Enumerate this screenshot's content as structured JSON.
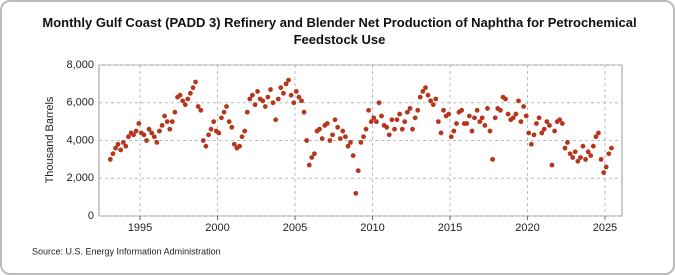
{
  "chart_data": {
    "type": "scatter",
    "title": "Monthly Gulf Coast (PADD 3) Refinery and Blender Net Production of Naphtha for Petrochemical Feedstock Use",
    "y_label": "Thousand Barrels",
    "source": "Source: U.S. Energy Information Administration",
    "color": "#b5361c",
    "xlim": [
      1992.35,
      2026.1
    ],
    "xticks": [
      1995,
      2000,
      2005,
      2010,
      2015,
      2020,
      2025
    ],
    "ylim": [
      0,
      8000
    ],
    "yticks": [
      0,
      {
        "value": 2000,
        "label": "2,000"
      },
      {
        "value": 4000,
        "label": "4,000"
      },
      {
        "value": 6000,
        "label": "6,000"
      },
      {
        "value": 8000,
        "label": "8,000"
      }
    ],
    "grid": true,
    "x": [
      1993.08,
      1993.25,
      1993.42,
      1993.58,
      1993.75,
      1993.92,
      1994.08,
      1994.25,
      1994.42,
      1994.58,
      1994.75,
      1994.92,
      1995.08,
      1995.25,
      1995.42,
      1995.58,
      1995.75,
      1995.92,
      1996.08,
      1996.25,
      1996.42,
      1996.58,
      1996.75,
      1996.92,
      1997.08,
      1997.25,
      1997.42,
      1997.58,
      1997.75,
      1997.92,
      1998.08,
      1998.25,
      1998.42,
      1998.58,
      1998.75,
      1998.92,
      1999.08,
      1999.25,
      1999.42,
      1999.58,
      1999.75,
      1999.92,
      2000.08,
      2000.25,
      2000.42,
      2000.58,
      2000.75,
      2000.92,
      2001.08,
      2001.25,
      2001.42,
      2001.58,
      2001.75,
      2001.92,
      2002.08,
      2002.25,
      2002.42,
      2002.58,
      2002.75,
      2002.92,
      2003.08,
      2003.25,
      2003.42,
      2003.58,
      2003.75,
      2003.92,
      2004.08,
      2004.25,
      2004.42,
      2004.58,
      2004.75,
      2004.92,
      2005.08,
      2005.25,
      2005.42,
      2005.58,
      2005.75,
      2005.92,
      2006.08,
      2006.25,
      2006.42,
      2006.58,
      2006.75,
      2006.92,
      2007.08,
      2007.25,
      2007.42,
      2007.58,
      2007.75,
      2007.92,
      2008.08,
      2008.25,
      2008.42,
      2008.58,
      2008.75,
      2008.92,
      2009.08,
      2009.25,
      2009.42,
      2009.58,
      2009.75,
      2009.92,
      2010.08,
      2010.25,
      2010.42,
      2010.58,
      2010.75,
      2010.92,
      2011.08,
      2011.25,
      2011.42,
      2011.58,
      2011.75,
      2011.92,
      2012.08,
      2012.25,
      2012.42,
      2012.58,
      2012.75,
      2012.92,
      2013.08,
      2013.25,
      2013.42,
      2013.58,
      2013.75,
      2013.92,
      2014.08,
      2014.25,
      2014.42,
      2014.58,
      2014.75,
      2014.92,
      2015.08,
      2015.25,
      2015.42,
      2015.58,
      2015.75,
      2015.92,
      2016.08,
      2016.25,
      2016.42,
      2016.58,
      2016.75,
      2016.92,
      2017.08,
      2017.25,
      2017.42,
      2017.58,
      2017.75,
      2017.92,
      2018.08,
      2018.25,
      2018.42,
      2018.58,
      2018.75,
      2018.92,
      2019.08,
      2019.25,
      2019.42,
      2019.58,
      2019.75,
      2019.92,
      2020.08,
      2020.25,
      2020.42,
      2020.58,
      2020.75,
      2020.92,
      2021.08,
      2021.25,
      2021.42,
      2021.58,
      2021.75,
      2021.92,
      2022.08,
      2022.25,
      2022.42,
      2022.58,
      2022.75,
      2022.92,
      2023.08,
      2023.25,
      2023.42,
      2023.58,
      2023.75,
      2023.92,
      2024.08,
      2024.25,
      2024.42,
      2024.58,
      2024.75,
      2024.92,
      2025.08,
      2025.25,
      2025.42
    ],
    "values": [
      3000,
      3300,
      3600,
      3800,
      3500,
      3900,
      3700,
      4200,
      4400,
      4300,
      4500,
      4900,
      4400,
      4300,
      4000,
      4600,
      4400,
      4200,
      3900,
      4500,
      4800,
      5300,
      5000,
      4600,
      5000,
      5500,
      6300,
      6400,
      6100,
      5900,
      6200,
      6500,
      6800,
      7100,
      5800,
      5600,
      4000,
      3700,
      4300,
      4600,
      5000,
      4500,
      4400,
      5200,
      5500,
      5800,
      5000,
      4700,
      3800,
      3600,
      3700,
      4200,
      4500,
      5500,
      6200,
      6400,
      5900,
      6600,
      6200,
      6100,
      5800,
      6300,
      6700,
      6000,
      5100,
      6200,
      6800,
      6500,
      7000,
      7200,
      6400,
      6000,
      6600,
      6300,
      6100,
      5500,
      4000,
      2700,
      3100,
      3300,
      4500,
      4600,
      4100,
      4800,
      4900,
      4000,
      4300,
      5100,
      4700,
      4100,
      4500,
      4200,
      3700,
      3900,
      3200,
      1200,
      2400,
      3900,
      4200,
      4600,
      5600,
      5000,
      5200,
      5000,
      6000,
      5300,
      4800,
      4700,
      4300,
      5100,
      4600,
      5100,
      5400,
      4600,
      5000,
      5500,
      5700,
      4600,
      5200,
      5600,
      6300,
      6600,
      6800,
      6400,
      6100,
      5900,
      6200,
      5000,
      4400,
      5600,
      5300,
      5400,
      4200,
      4500,
      4900,
      5500,
      5600,
      4900,
      4900,
      5300,
      4500,
      5200,
      5600,
      5000,
      5200,
      4800,
      5700,
      4500,
      3000,
      5200,
      5700,
      5600,
      6300,
      6200,
      5400,
      5100,
      5200,
      5400,
      6100,
      5000,
      5800,
      5300,
      4400,
      3800,
      4300,
      4900,
      5200,
      4400,
      4600,
      5000,
      4800,
      2700,
      4500,
      5000,
      5100,
      4900,
      3600,
      3900,
      3300,
      3100,
      3400,
      2900,
      3100,
      3700,
      3000,
      3400,
      3200,
      3700,
      4200,
      4400,
      3000,
      2300,
      2600,
      3300,
      3600
    ]
  }
}
